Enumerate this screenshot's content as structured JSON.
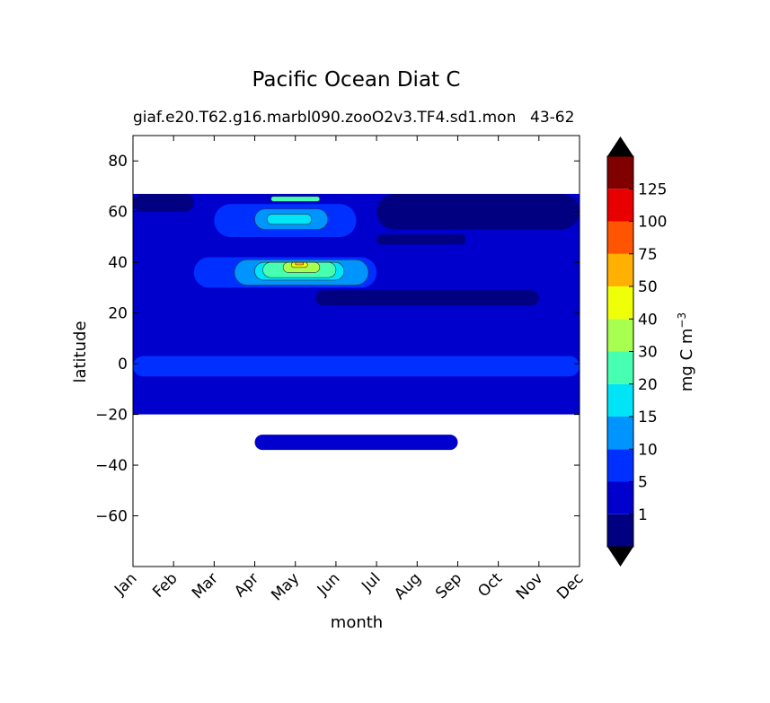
{
  "figure": {
    "title": "Pacific Ocean Diat C",
    "subtitle_left": "giaf.e20.T62.g16.marbl090.zooO2v3.TF4.sd1.mon",
    "subtitle_right": "43-62"
  },
  "chart_data": {
    "type": "contourf",
    "xlabel": "month",
    "ylabel": "latitude",
    "x_ticks": [
      "Jan",
      "Feb",
      "Mar",
      "Apr",
      "May",
      "Jun",
      "Jul",
      "Aug",
      "Sep",
      "Oct",
      "Nov",
      "Dec"
    ],
    "y_ticks": [
      80,
      60,
      40,
      20,
      0,
      -20,
      -40,
      -60
    ],
    "ylim": [
      -80,
      90
    ],
    "data_lat_range": [
      -34,
      67
    ],
    "colorbar": {
      "label": "mg C m",
      "label_superscript": "−3",
      "tick_labels": [
        "1",
        "5",
        "10",
        "15",
        "20",
        "30",
        "40",
        "50",
        "75",
        "100",
        "125"
      ],
      "levels": [
        0,
        1,
        5,
        10,
        15,
        20,
        30,
        40,
        50,
        75,
        100,
        125,
        150
      ],
      "colors": [
        "#000080",
        "#0000cd",
        "#0030ff",
        "#0094ff",
        "#00e4f7",
        "#46ffb1",
        "#a7ff50",
        "#eeff08",
        "#ffb000",
        "#ff5400",
        "#e80000",
        "#800000"
      ],
      "extend_under": "#000000",
      "extend_over": "#000000"
    },
    "regions": [
      {
        "level": 1,
        "lat_min": -20,
        "lat_max": 67,
        "month_min": 0,
        "month_max": 11
      },
      {
        "level": 1,
        "lat_min": -34,
        "lat_max": -28,
        "month_min": 3,
        "month_max": 8
      },
      {
        "level": 2,
        "lat_min": -5,
        "lat_max": 3,
        "month_min": 0,
        "month_max": 11
      },
      {
        "level": 2,
        "lat_min": 30,
        "lat_max": 42,
        "month_min": 1.5,
        "month_max": 6
      },
      {
        "level": 2,
        "lat_min": 50,
        "lat_max": 63,
        "month_min": 2,
        "month_max": 5.5
      },
      {
        "level": 3,
        "lat_min": 31,
        "lat_max": 41,
        "month_min": 2.5,
        "month_max": 5.8
      },
      {
        "level": 3,
        "lat_min": 53,
        "lat_max": 61,
        "month_min": 3,
        "month_max": 4.8
      },
      {
        "level": 4,
        "lat_min": 33,
        "lat_max": 40,
        "month_min": 3,
        "month_max": 5.2
      },
      {
        "level": 4,
        "lat_min": 55,
        "lat_max": 59,
        "month_min": 3.3,
        "month_max": 4.4
      },
      {
        "level": 5,
        "lat_min": 34,
        "lat_max": 40,
        "month_min": 3.2,
        "month_max": 5
      },
      {
        "level": 5,
        "lat_min": 64,
        "lat_max": 66,
        "month_min": 3.4,
        "month_max": 4.6
      },
      {
        "level": 6,
        "lat_min": 36,
        "lat_max": 40,
        "month_min": 3.7,
        "month_max": 4.6
      },
      {
        "level": 7,
        "lat_min": 38,
        "lat_max": 40,
        "month_min": 3.9,
        "month_max": 4.3
      },
      {
        "level": 8,
        "lat_min": 39,
        "lat_max": 40,
        "month_min": 4.0,
        "month_max": 4.2
      },
      {
        "level": 0,
        "lat_min": 23,
        "lat_max": 29,
        "month_min": 4.5,
        "month_max": 10
      },
      {
        "level": 0,
        "lat_min": 47,
        "lat_max": 51,
        "month_min": 6,
        "month_max": 8.2
      },
      {
        "level": 0,
        "lat_min": 53,
        "lat_max": 67,
        "month_min": 6,
        "month_max": 11
      },
      {
        "level": 0,
        "lat_min": 60,
        "lat_max": 67,
        "month_min": 0,
        "month_max": 1.5
      }
    ]
  }
}
